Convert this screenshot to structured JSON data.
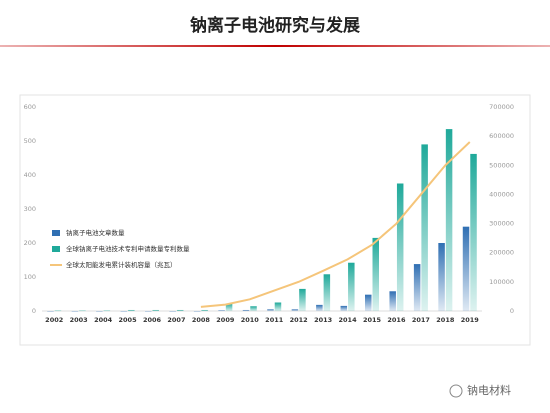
{
  "title": "钠离子电池研究与发展",
  "watermark": "钠电材料",
  "chart_data": {
    "type": "bar",
    "categories": [
      "2002",
      "2003",
      "2004",
      "2005",
      "2006",
      "2007",
      "2008",
      "2009",
      "2010",
      "2011",
      "2012",
      "2013",
      "2014",
      "2015",
      "2016",
      "2017",
      "2018",
      "2019"
    ],
    "series": [
      {
        "name": "钠离子电池文章数量",
        "color": "#2f6fb3",
        "values": [
          0,
          0,
          0,
          0,
          0,
          0,
          0,
          2,
          3,
          5,
          5,
          18,
          15,
          48,
          58,
          138,
          200,
          248
        ]
      },
      {
        "name": "全球钠离子电池技术专利申请数量专利数量",
        "color": "#1fa99a",
        "values": [
          1,
          1,
          1,
          3,
          3,
          3,
          3,
          22,
          14,
          25,
          65,
          108,
          142,
          215,
          375,
          490,
          535,
          462
        ]
      },
      {
        "name": "全球太阳能发电累计装机容量（兆瓦）",
        "color": "#f5c57a",
        "type": "line",
        "axis": "y2",
        "values": [
          null,
          null,
          null,
          null,
          null,
          null,
          14000,
          22000,
          40000,
          70000,
          100000,
          138000,
          177000,
          227000,
          300000,
          400000,
          500000,
          580000
        ]
      }
    ],
    "ylim": [
      0,
      600
    ],
    "yticks": [
      0,
      100,
      200,
      300,
      400,
      500,
      600
    ],
    "y2lim": [
      0,
      700000
    ],
    "y2ticks": [
      0,
      100000,
      200000,
      300000,
      400000,
      500000,
      600000,
      700000
    ],
    "legend": "left"
  }
}
